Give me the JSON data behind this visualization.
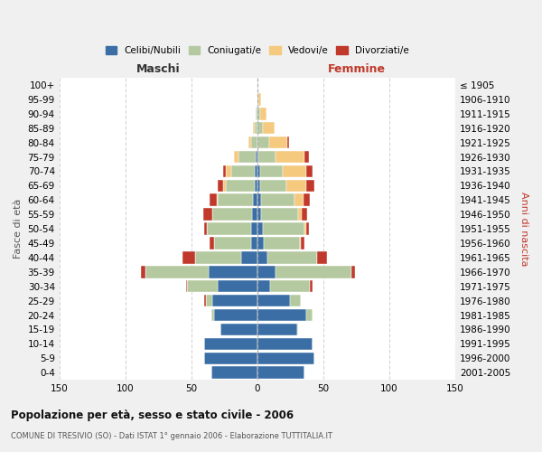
{
  "age_groups": [
    "0-4",
    "5-9",
    "10-14",
    "15-19",
    "20-24",
    "25-29",
    "30-34",
    "35-39",
    "40-44",
    "45-49",
    "50-54",
    "55-59",
    "60-64",
    "65-69",
    "70-74",
    "75-79",
    "80-84",
    "85-89",
    "90-94",
    "95-99",
    "100+"
  ],
  "birth_years": [
    "2001-2005",
    "1996-2000",
    "1991-1995",
    "1986-1990",
    "1981-1985",
    "1976-1980",
    "1971-1975",
    "1966-1970",
    "1961-1965",
    "1956-1960",
    "1951-1955",
    "1946-1950",
    "1941-1945",
    "1936-1940",
    "1931-1935",
    "1926-1930",
    "1921-1925",
    "1916-1920",
    "1911-1915",
    "1906-1910",
    "≤ 1905"
  ],
  "males": {
    "celibi": [
      35,
      40,
      40,
      28,
      33,
      34,
      30,
      37,
      12,
      5,
      5,
      4,
      3,
      2,
      2,
      1,
      0,
      0,
      0,
      0,
      0
    ],
    "coniugati": [
      0,
      0,
      0,
      0,
      2,
      5,
      23,
      48,
      35,
      28,
      33,
      30,
      27,
      22,
      18,
      13,
      5,
      2,
      1,
      0,
      0
    ],
    "vedovi": [
      0,
      0,
      0,
      0,
      0,
      0,
      0,
      0,
      0,
      0,
      0,
      0,
      1,
      2,
      4,
      4,
      2,
      1,
      0,
      0,
      0
    ],
    "divorziati": [
      0,
      0,
      0,
      0,
      0,
      1,
      1,
      3,
      10,
      3,
      2,
      7,
      5,
      4,
      2,
      0,
      0,
      0,
      0,
      0,
      0
    ]
  },
  "females": {
    "nubili": [
      36,
      43,
      42,
      30,
      37,
      25,
      10,
      14,
      8,
      5,
      4,
      3,
      3,
      2,
      2,
      1,
      0,
      0,
      0,
      0,
      0
    ],
    "coniugate": [
      0,
      0,
      0,
      1,
      5,
      8,
      30,
      57,
      37,
      27,
      32,
      28,
      25,
      20,
      17,
      13,
      9,
      4,
      2,
      1,
      0
    ],
    "vedove": [
      0,
      0,
      0,
      0,
      0,
      0,
      0,
      0,
      0,
      1,
      1,
      3,
      7,
      15,
      18,
      22,
      14,
      9,
      5,
      2,
      0
    ],
    "divorziate": [
      0,
      0,
      0,
      0,
      0,
      0,
      2,
      3,
      8,
      3,
      2,
      4,
      5,
      6,
      5,
      3,
      1,
      0,
      0,
      0,
      0
    ]
  },
  "color_celibi": "#3a6ea5",
  "color_coniugati": "#b5c9a0",
  "color_vedovi": "#f5c97e",
  "color_divorziati": "#c0392b",
  "xlim": 150,
  "title": "Popolazione per età, sesso e stato civile - 2006",
  "subtitle": "COMUNE DI TRESIVIO (SO) - Dati ISTAT 1° gennaio 2006 - Elaborazione TUTTITALIA.IT",
  "xlabel_left": "Maschi",
  "xlabel_right": "Femmine",
  "ylabel_left": "Fasce di età",
  "ylabel_right": "Anni di nascita",
  "legend_labels": [
    "Celibi/Nubili",
    "Coniugati/e",
    "Vedovi/e",
    "Divorziati/e"
  ],
  "bg_color": "#f0f0f0",
  "plot_bg_color": "#ffffff"
}
